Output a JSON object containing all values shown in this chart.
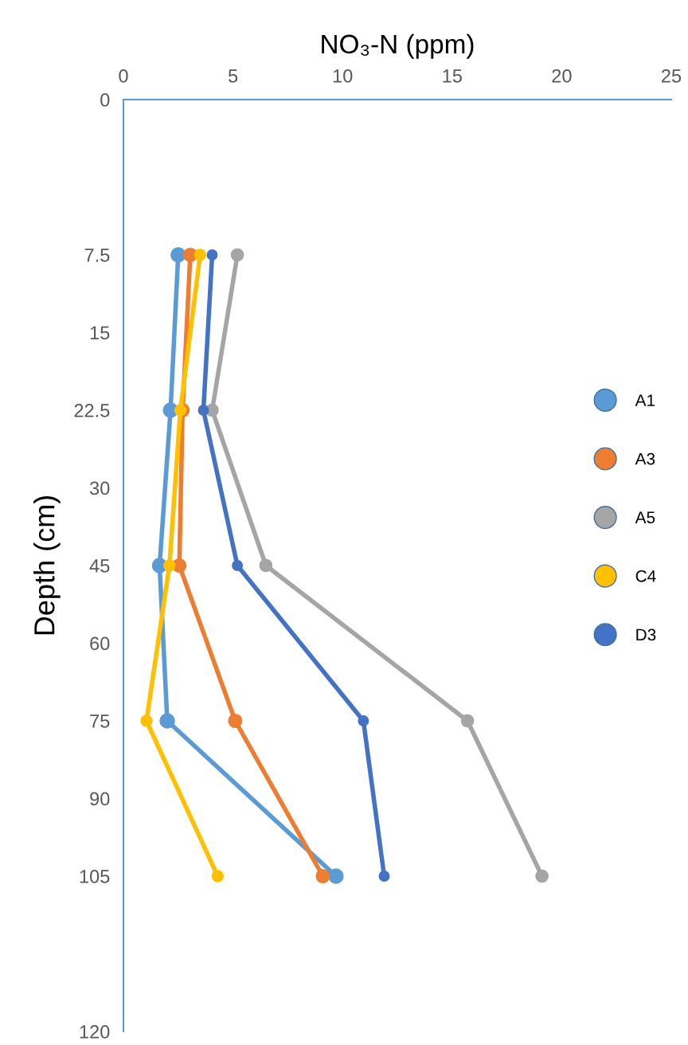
{
  "chart_data": {
    "type": "line",
    "orientation": "horizontal",
    "xlabel": "NO₃-N (ppm)",
    "ylabel": "Depth (cm)",
    "categories": [
      "0",
      null,
      "7.5",
      "15",
      "22.5",
      "30",
      "45",
      "60",
      "75",
      "90",
      "105",
      null,
      "120"
    ],
    "xlim": [
      0,
      25
    ],
    "xticks": [
      0,
      5,
      10,
      15,
      20,
      25
    ],
    "grid": false,
    "legend": "right",
    "marker": "circle",
    "line_style": "solid",
    "series": [
      {
        "name": "A1",
        "color": "#5b9bd5",
        "values": [
          null,
          null,
          2.5,
          null,
          2.15,
          null,
          1.65,
          null,
          2.0,
          null,
          9.7,
          null,
          null
        ]
      },
      {
        "name": "A3",
        "color": "#ed7d31",
        "values": [
          null,
          null,
          3.05,
          null,
          2.7,
          null,
          2.55,
          null,
          5.1,
          null,
          9.1,
          null,
          null
        ]
      },
      {
        "name": "A5",
        "color": "#a5a5a5",
        "values": [
          null,
          null,
          5.2,
          null,
          4.05,
          null,
          6.5,
          null,
          15.7,
          null,
          19.1,
          null,
          null
        ]
      },
      {
        "name": "C4",
        "color": "#ffc000",
        "values": [
          null,
          null,
          3.5,
          null,
          2.6,
          null,
          2.1,
          null,
          1.05,
          null,
          4.3,
          null,
          null
        ]
      },
      {
        "name": "D3",
        "color": "#4472c4",
        "values": [
          null,
          null,
          4.05,
          null,
          3.65,
          null,
          5.2,
          null,
          10.95,
          null,
          11.9,
          null,
          null
        ]
      }
    ]
  }
}
